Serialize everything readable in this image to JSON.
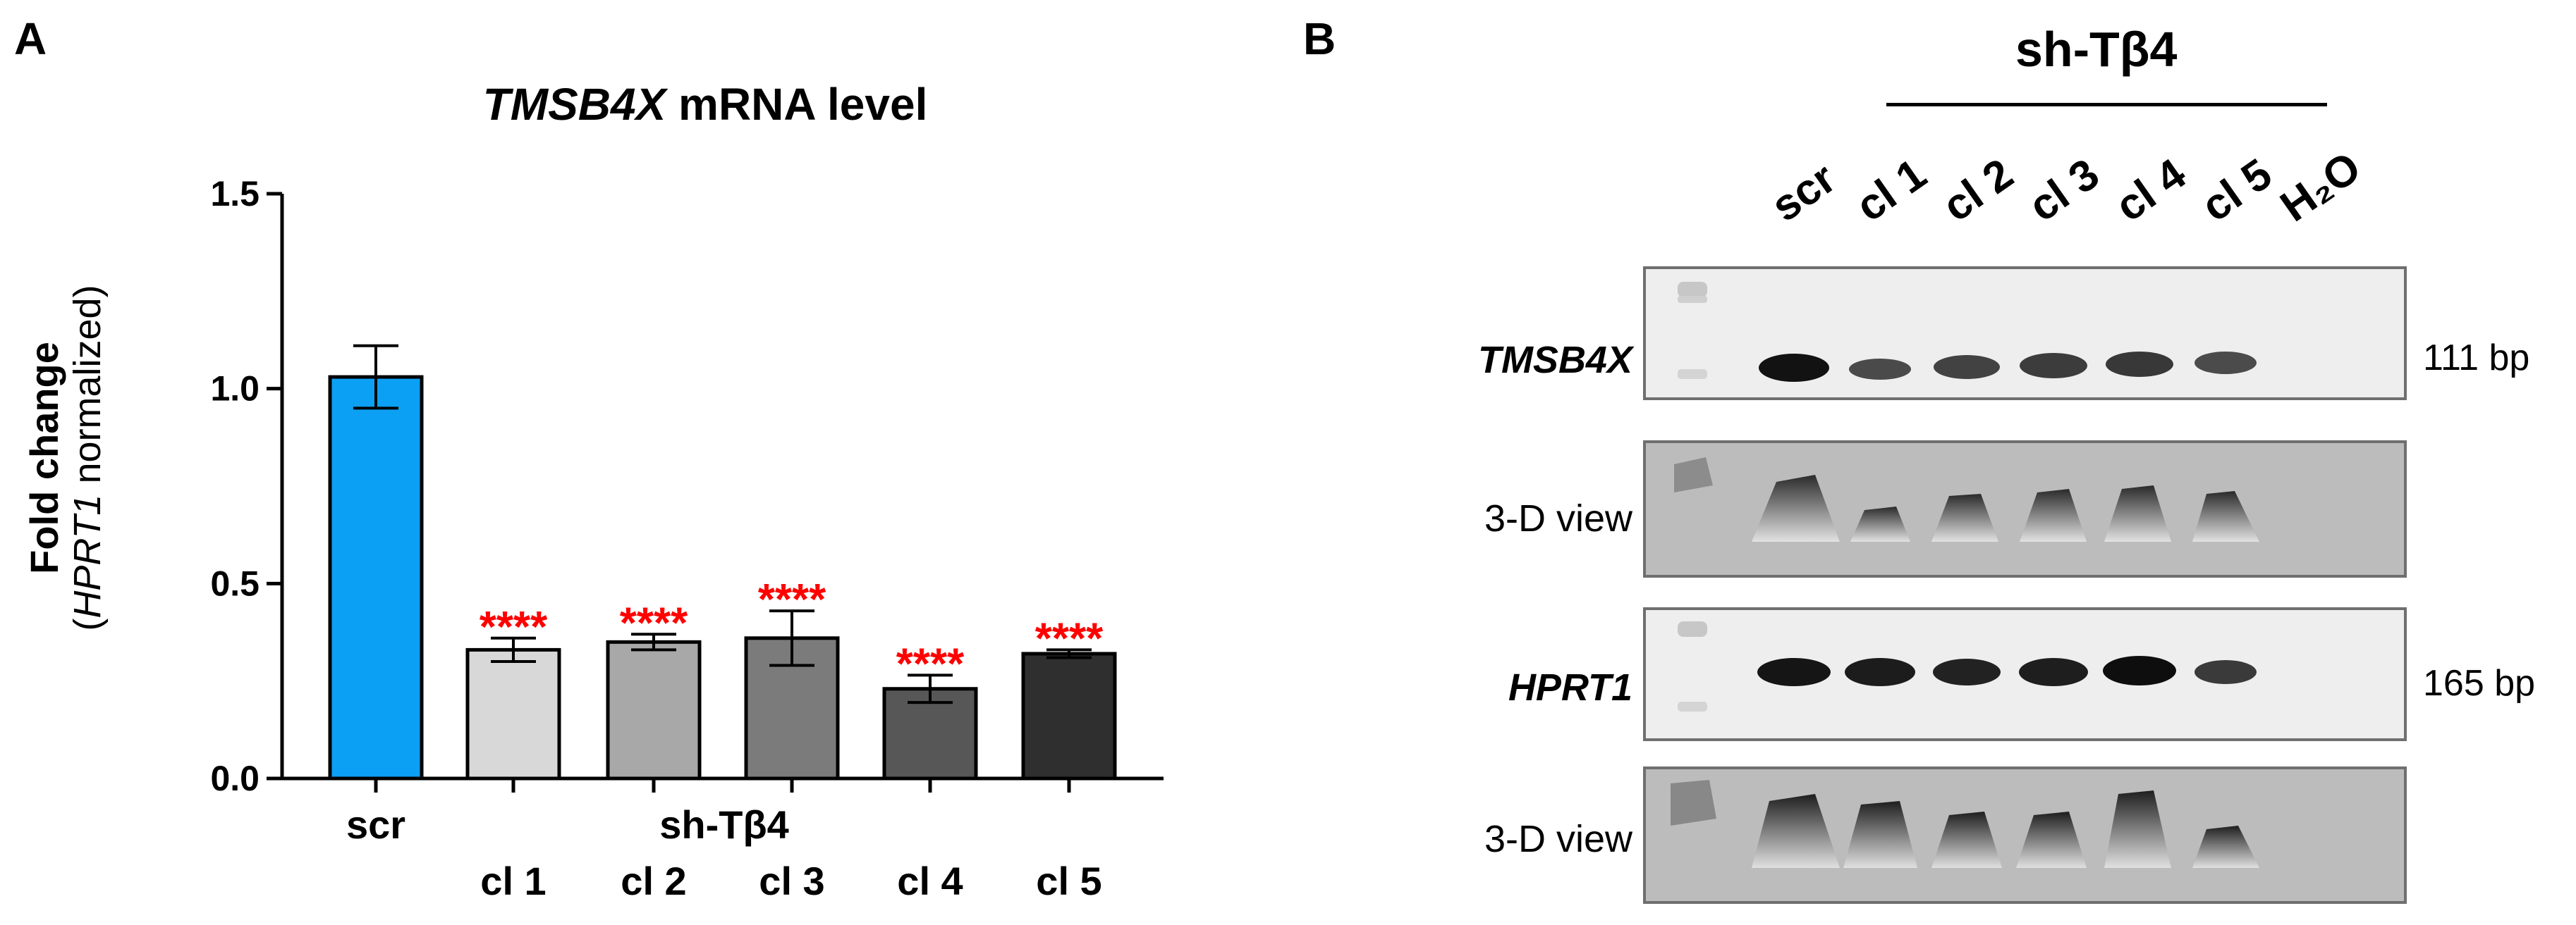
{
  "panels": {
    "a": "A",
    "b": "B"
  },
  "chart_data": {
    "type": "bar",
    "title_gene": "TMSB4X",
    "title_rest": " mRNA level",
    "ylabel_main": "Fold change",
    "ylabel_gene": "HPRT1",
    "ylabel_rest": " normalized)",
    "ylabel_open": "(",
    "ylim": [
      0,
      1.5
    ],
    "yticks": [
      "0.0",
      "0.5",
      "1.0",
      "1.5"
    ],
    "categories": [
      "scr",
      "cl 1",
      "cl 2",
      "cl 3",
      "cl 4",
      "cl 5"
    ],
    "values": [
      1.03,
      0.33,
      0.35,
      0.36,
      0.23,
      0.32
    ],
    "errors": [
      0.08,
      0.03,
      0.02,
      0.07,
      0.035,
      0.01
    ],
    "colors": [
      "#0ba0f3",
      "#d8d8d8",
      "#a8a8a8",
      "#7b7b7b",
      "#575757",
      "#2f2f2f"
    ],
    "significance": [
      "",
      "****",
      "****",
      "****",
      "****",
      "****"
    ],
    "significance_color": "#ff0000",
    "group_label": "sh-Tβ4"
  },
  "gel": {
    "group_label": "sh-Tβ4",
    "lanes": [
      "scr",
      "cl 1",
      "cl 2",
      "cl 3",
      "cl 4",
      "cl 5",
      "H₂O"
    ],
    "rows": [
      {
        "label": "TMSB4X",
        "bp": "111 bp"
      },
      {
        "label": "3-D view"
      },
      {
        "label": "HPRT1",
        "bp": "165 bp"
      },
      {
        "label": "3-D view"
      }
    ]
  }
}
